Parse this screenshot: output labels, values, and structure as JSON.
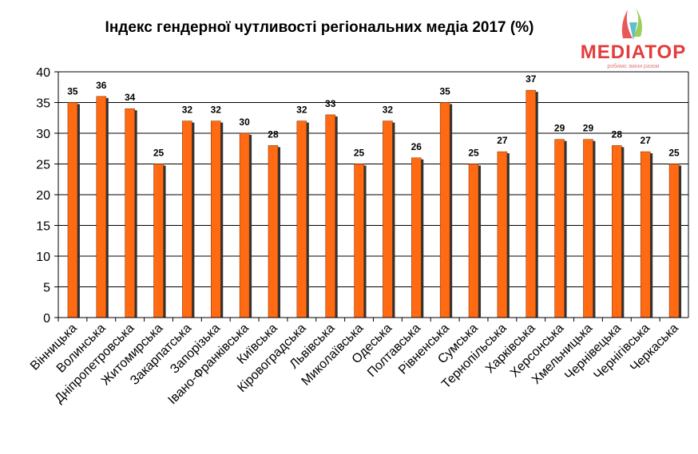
{
  "chart_data": {
    "type": "bar",
    "title": "Індекс гендерної чутливості регіональних медіа 2017 (%)",
    "xlabel": "",
    "ylabel": "",
    "ylim": [
      0,
      40
    ],
    "yticks": [
      0,
      5,
      10,
      15,
      20,
      25,
      30,
      35,
      40
    ],
    "grid": true,
    "bar_color": "#ff6a13",
    "categories": [
      "Вінницька",
      "Волинська",
      "Дніпропетровська",
      "Житомирська",
      "Закарпатська",
      "Запорізька",
      "Івано-Франківська",
      "Київська",
      "Кіровоградська",
      "Львівська",
      "Миколаївська",
      "Одеська",
      "Полтавська",
      "Рівненська",
      "Сумська",
      "Тернопільська",
      "Харківська",
      "Херсонська",
      "Хмельницька",
      "Чернівецька",
      "Чернігівська",
      "Черкаська"
    ],
    "values": [
      35,
      36,
      34,
      25,
      32,
      32,
      30,
      28,
      32,
      33,
      25,
      32,
      26,
      35,
      25,
      27,
      37,
      29,
      29,
      28,
      27,
      25
    ]
  },
  "logo": {
    "wordmark": "MEDIATOP",
    "tagline": "робимо зміни разом",
    "colors": [
      "#e53b3b",
      "#4fb8c8",
      "#8cc63f"
    ]
  }
}
